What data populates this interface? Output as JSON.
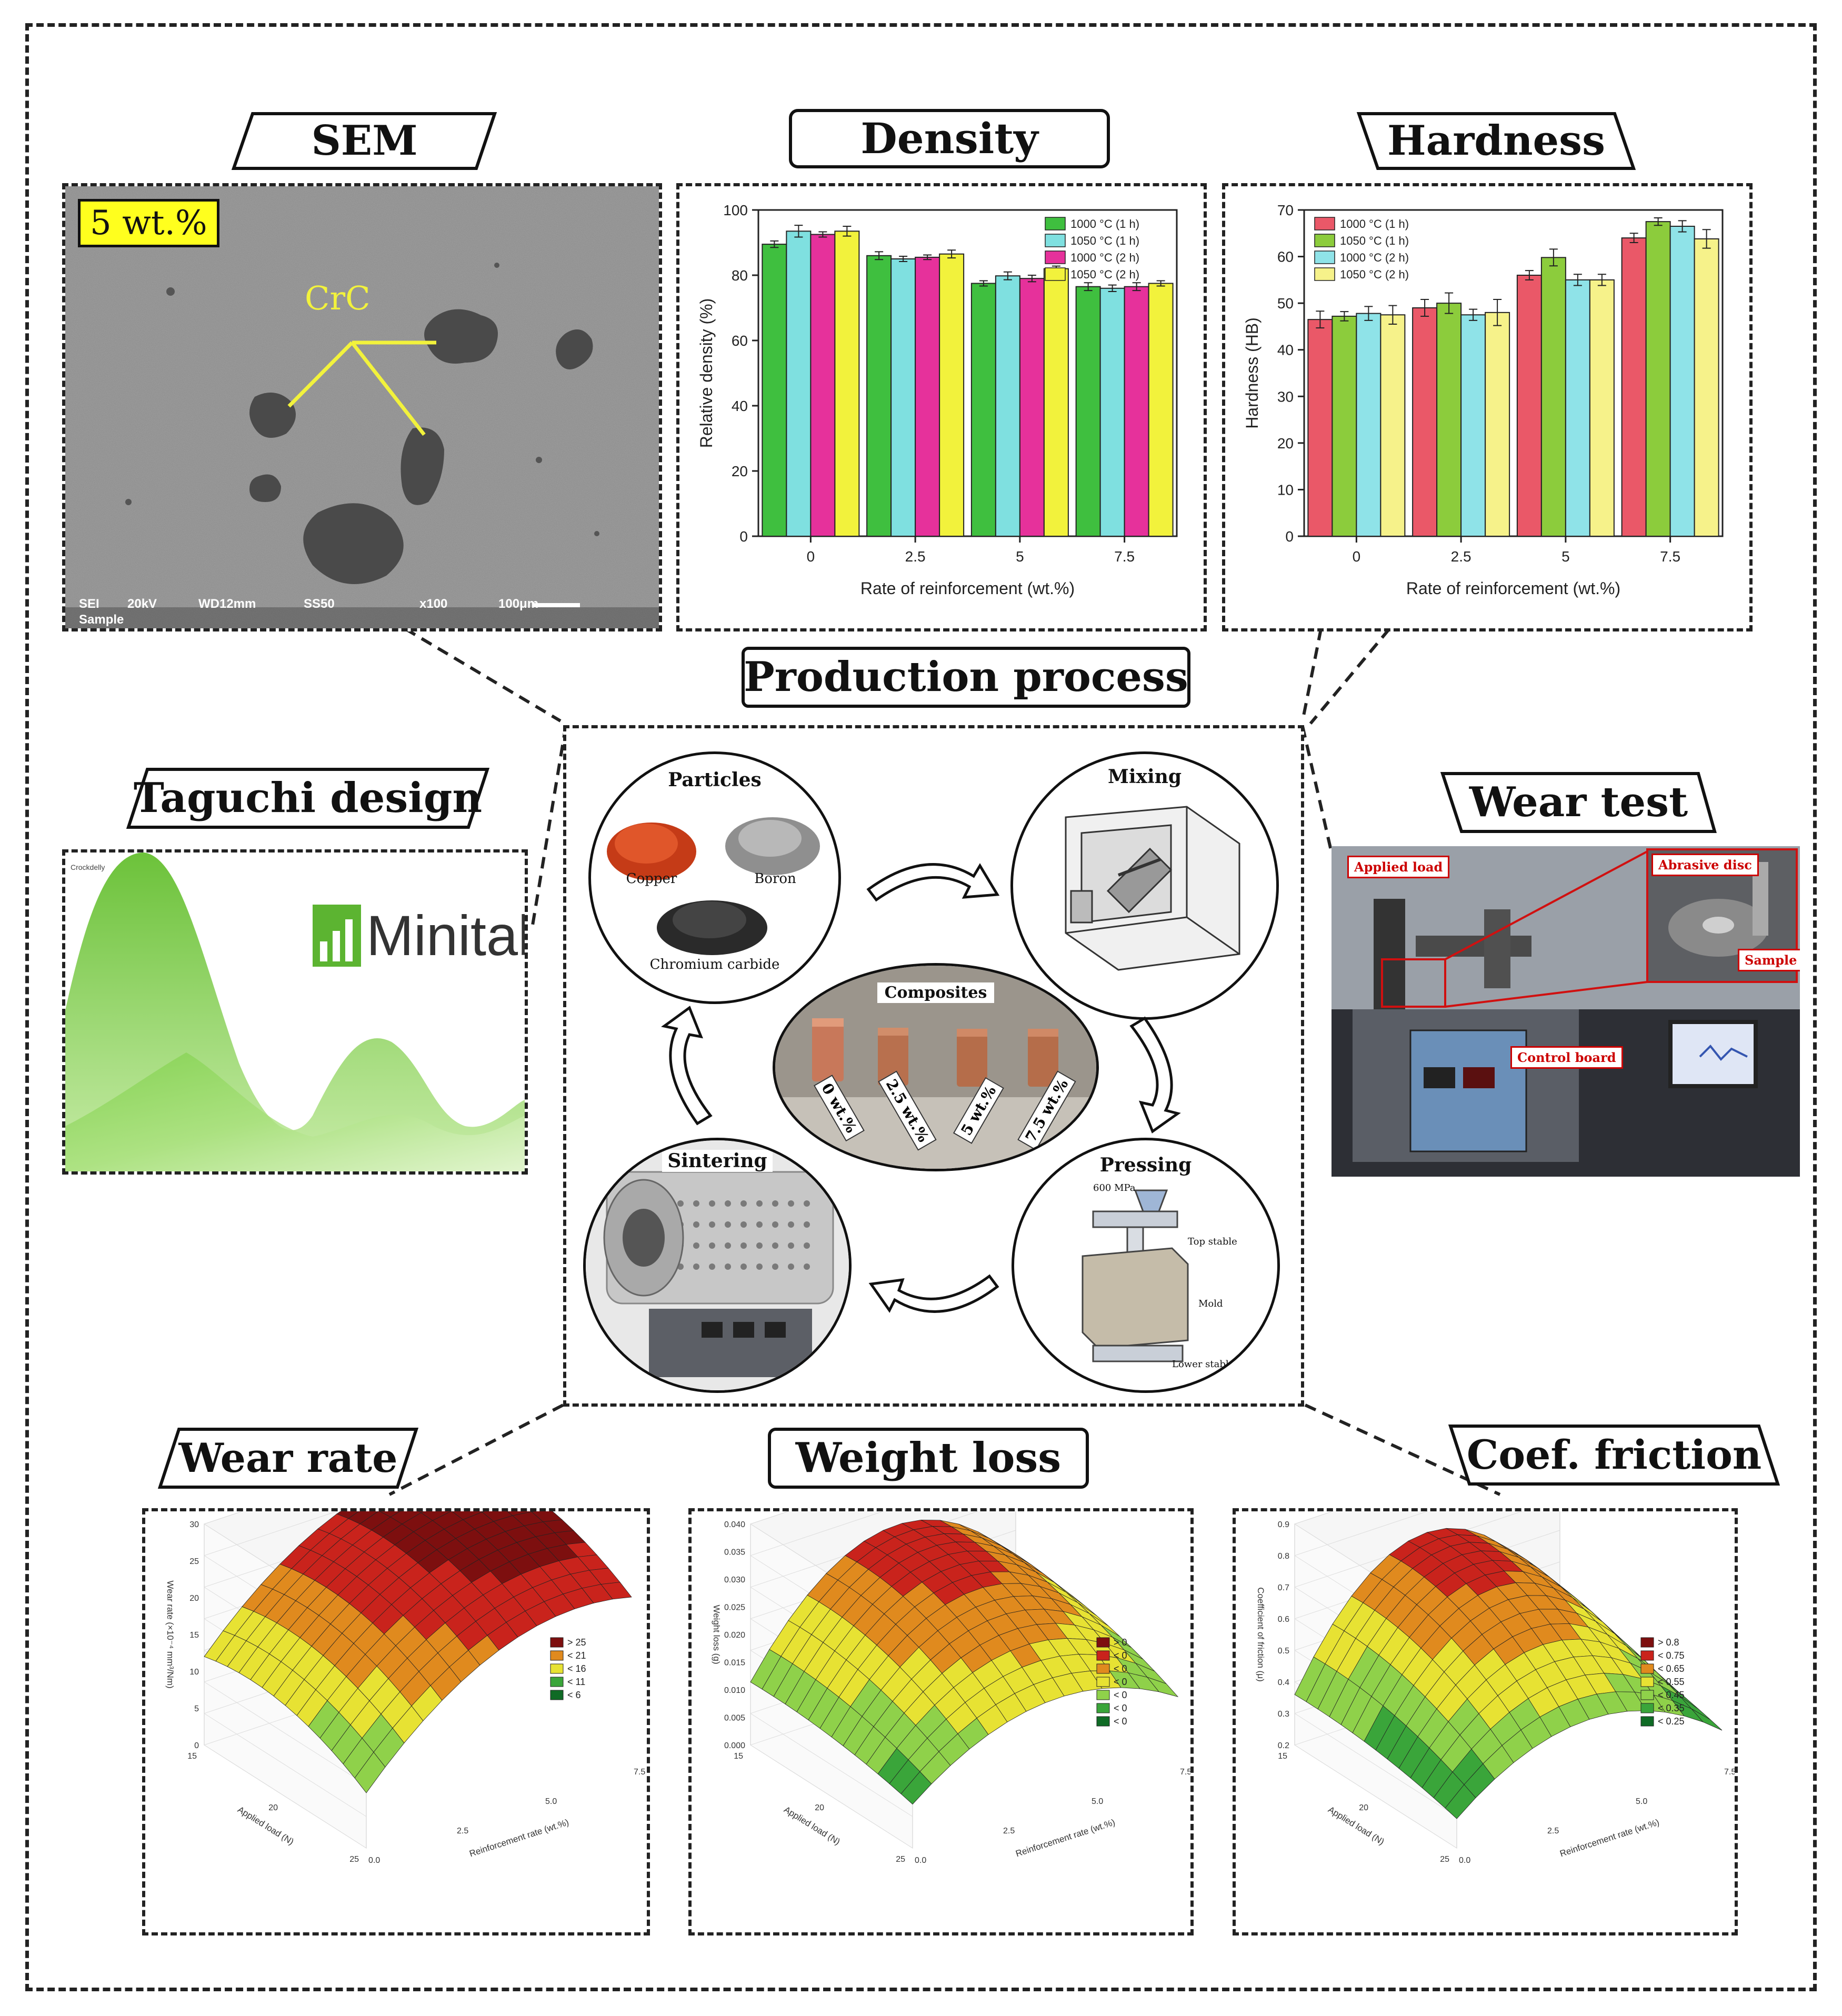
{
  "sections": {
    "sem": "SEM",
    "density": "Density",
    "hardness": "Hardness",
    "production": "Production process",
    "taguchi": "Taguchi design",
    "wear_test": "Wear test",
    "wear_rate": "Wear rate",
    "weight_loss": "Weight loss",
    "coef_friction": "Coef. friction"
  },
  "sem": {
    "badge": "5 wt.%",
    "phase_label": "CrC",
    "footer": [
      "SEI",
      "20kV",
      "WD12mm",
      "SS50",
      "x100",
      "100μm"
    ],
    "footer2": "Sample"
  },
  "taguchi": {
    "brand": "Minitab",
    "reg": "®",
    "tiny": "Crockdelly"
  },
  "process": {
    "particles_title": "Particles",
    "copper": "Copper",
    "boron": "Boron",
    "chromium": "Chromium carbide",
    "mixing_title": "Mixing",
    "composites_title": "Composites",
    "composite_tags": [
      "0 wt.%",
      "2.5 wt.%",
      "5 wt.%",
      "7.5 wt.%"
    ],
    "pressing_title": "Pressing",
    "pressing_labels": {
      "pressure": "600 MPa",
      "top": "Top stable",
      "mold": "Mold",
      "lower": "Lower stable"
    },
    "sintering_title": "Sintering"
  },
  "wear_photo": {
    "applied_load": "Applied load",
    "abrasive_disc": "Abrasive disc",
    "sample": "Sample",
    "control_board": "Control board"
  },
  "colors": {
    "green": "#3fbf3f",
    "cyan": "#7fe0e0",
    "magenta": "#e6319b",
    "yellow": "#f2f23c",
    "red": "#ea5868",
    "olive": "#8ccc3c",
    "light_cyan": "#8fe3e8",
    "light_yellow": "#f6f28a"
  },
  "chart_data": [
    {
      "type": "bar",
      "title": "",
      "xlabel": "Rate of reinforcement (wt.%)",
      "ylabel": "Relative density (%)",
      "categories": [
        "0",
        "2.5",
        "5",
        "7.5"
      ],
      "ylim": [
        0,
        100
      ],
      "yticks": [
        "0",
        "20",
        "40",
        "60",
        "80",
        "100"
      ],
      "legend": "top-right",
      "series": [
        {
          "name": "1000 °C (1 h)",
          "values": [
            89.5,
            86,
            77.5,
            76.5
          ],
          "err": [
            1,
            1.2,
            0.8,
            1.2
          ],
          "color": "#3fbf3f"
        },
        {
          "name": "1050 °C (1 h)",
          "values": [
            93.5,
            85,
            79.8,
            76
          ],
          "err": [
            1.8,
            0.8,
            1.2,
            1
          ],
          "color": "#7fe0e0"
        },
        {
          "name": "1000 °C (2 h)",
          "values": [
            92.5,
            85.5,
            79,
            76.5
          ],
          "err": [
            0.8,
            0.7,
            1,
            1.2
          ],
          "color": "#e6319b"
        },
        {
          "name": "1050 °C (2 h)",
          "values": [
            93.5,
            86.5,
            82,
            77.5
          ],
          "err": [
            1.5,
            1.2,
            0.8,
            0.8
          ],
          "color": "#f2f23c"
        }
      ]
    },
    {
      "type": "bar",
      "title": "",
      "xlabel": "Rate of reinforcement (wt.%)",
      "ylabel": "Hardness (HB)",
      "categories": [
        "0",
        "2.5",
        "5",
        "7.5"
      ],
      "ylim": [
        0,
        70
      ],
      "yticks": [
        "0",
        "10",
        "20",
        "30",
        "40",
        "50",
        "60",
        "70"
      ],
      "legend": "top-left",
      "series": [
        {
          "name": "1000 °C (1 h)",
          "values": [
            46.5,
            49,
            56,
            64
          ],
          "err": [
            1.8,
            1.8,
            1,
            1
          ],
          "color": "#ea5868"
        },
        {
          "name": "1050 °C (1 h)",
          "values": [
            47.2,
            50,
            59.8,
            67.5
          ],
          "err": [
            1,
            2.2,
            1.8,
            0.8
          ],
          "color": "#8ccc3c"
        },
        {
          "name": "1000 °C (2 h)",
          "values": [
            47.8,
            47.5,
            55,
            66.5
          ],
          "err": [
            1.5,
            1.2,
            1.2,
            1.2
          ],
          "color": "#8fe3e8"
        },
        {
          "name": "1050 °C (2 h)",
          "values": [
            47.5,
            48,
            55,
            63.8
          ],
          "err": [
            2,
            2.8,
            1.2,
            2
          ],
          "color": "#f6f28a"
        }
      ]
    },
    {
      "type": "surface",
      "title": "",
      "zlabel": "Wear rate (×10⁻⁴ mm³/Nm)",
      "xlabel": "Reinforcement rate (wt.%)",
      "ylabel": "Applied load (N)",
      "zticks": [
        "0",
        "5",
        "10",
        "15",
        "20",
        "25",
        "30"
      ],
      "xticks": [
        "0.0",
        "2.5",
        "5.0",
        "7.5"
      ],
      "yticks": [
        "15",
        "20",
        "25"
      ],
      "legend": [
        "> 25",
        "< 21",
        "< 16",
        "< 11",
        "< 6"
      ]
    },
    {
      "type": "surface",
      "title": "",
      "zlabel": "Weight loss (g)",
      "xlabel": "Reinforcement rate (wt.%)",
      "ylabel": "Applied load (N)",
      "zticks": [
        "0.000",
        "0.005",
        "0.010",
        "0.015",
        "0.020",
        "0.025",
        "0.030",
        "0.035",
        "0.040"
      ],
      "xticks": [
        "0.0",
        "2.5",
        "5.0",
        "7.5"
      ],
      "yticks": [
        "15",
        "20",
        "25"
      ],
      "legend": [
        "> 0",
        "< 0",
        "< 0",
        "< 0",
        "< 0",
        "< 0",
        "< 0"
      ]
    },
    {
      "type": "surface",
      "title": "",
      "zlabel": "Coefficient of friction (μ)",
      "xlabel": "Reinforcement rate (wt.%)",
      "ylabel": "Applied load (N)",
      "zticks": [
        "0.2",
        "0.3",
        "0.4",
        "0.5",
        "0.6",
        "0.7",
        "0.8",
        "0.9"
      ],
      "xticks": [
        "0.0",
        "2.5",
        "5.0",
        "7.5"
      ],
      "yticks": [
        "15",
        "20",
        "25"
      ],
      "legend": [
        "> 0.8",
        "< 0.75",
        "< 0.65",
        "< 0.55",
        "< 0.45",
        "< 0.35",
        "< 0.25"
      ]
    }
  ]
}
